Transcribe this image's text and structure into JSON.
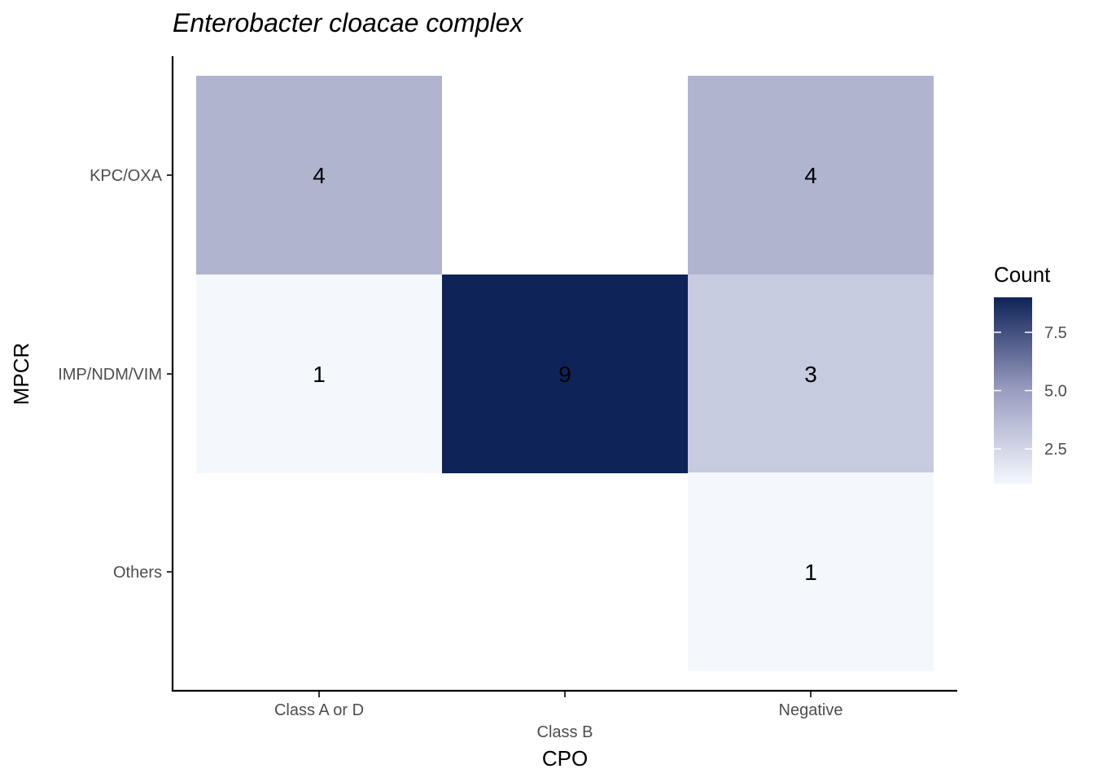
{
  "chart_data": {
    "type": "heatmap",
    "title": "Enterobacter cloacae complex",
    "xlabel": "CPO",
    "ylabel": "MPCR",
    "x_categories": [
      "Class A or D",
      "Class B",
      "Negative"
    ],
    "y_categories": [
      "KPC/OXA",
      "IMP/NDM/VIM",
      "Others"
    ],
    "cells": [
      {
        "x": "Class A or D",
        "y": "KPC/OXA",
        "value": 4
      },
      {
        "x": "Negative",
        "y": "KPC/OXA",
        "value": 4
      },
      {
        "x": "Class A or D",
        "y": "IMP/NDM/VIM",
        "value": 1
      },
      {
        "x": "Class B",
        "y": "IMP/NDM/VIM",
        "value": 9
      },
      {
        "x": "Negative",
        "y": "IMP/NDM/VIM",
        "value": 3
      },
      {
        "x": "Negative",
        "y": "Others",
        "value": 1
      }
    ],
    "legend": {
      "title": "Count",
      "placement": "right",
      "ticks": [
        "2.5",
        "5.0",
        "7.5"
      ],
      "range": [
        1,
        9
      ],
      "low_color": "#f4f8fd",
      "high_color": "#0e2358"
    },
    "grid": false
  }
}
